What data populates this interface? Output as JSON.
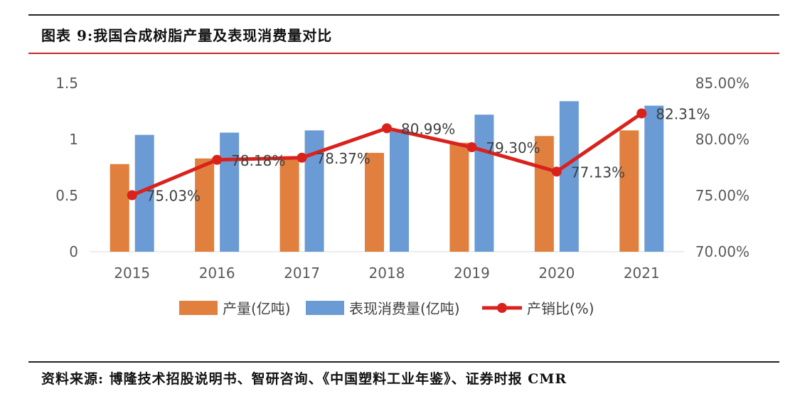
{
  "figure": {
    "title": "图表 9:我国合成树脂产量及表现消费量对比",
    "source": "资料来源: 博隆技术招股说明书、智研咨询、《中国塑料工业年鉴》、证券时报 CMR"
  },
  "chart_data": {
    "type": "bar+line",
    "title": "我国合成树脂产量及表现消费量对比",
    "categories": [
      "2015",
      "2016",
      "2017",
      "2018",
      "2019",
      "2020",
      "2021"
    ],
    "y_left": {
      "ylim": [
        0,
        1.5
      ],
      "ticks": [
        "0",
        "0.5",
        "1",
        "1.5"
      ],
      "tick_values": [
        0,
        0.5,
        1,
        1.5
      ]
    },
    "y_right": {
      "ylim": [
        70,
        85
      ],
      "ticks": [
        "70.00%",
        "75.00%",
        "80.00%",
        "85.00%"
      ],
      "tick_values": [
        70,
        75,
        80,
        85
      ]
    },
    "series": [
      {
        "name": "产量(亿吨)",
        "type": "bar",
        "axis": "left",
        "color": "#e07f3e",
        "values": [
          0.78,
          0.83,
          0.85,
          0.88,
          0.97,
          1.03,
          1.08
        ]
      },
      {
        "name": "表现消费量(亿吨)",
        "type": "bar",
        "axis": "left",
        "color": "#6a9bd4",
        "values": [
          1.04,
          1.06,
          1.08,
          1.09,
          1.22,
          1.34,
          1.3
        ]
      },
      {
        "name": "产销比(%)",
        "type": "line",
        "axis": "right",
        "color": "#d9221c",
        "values": [
          75.03,
          78.18,
          78.37,
          80.99,
          79.3,
          77.13,
          82.31
        ],
        "labels": [
          "75.03%",
          "78.18%",
          "78.37%",
          "80.99%",
          "79.30%",
          "77.13%",
          "82.31%"
        ]
      }
    ],
    "legend": [
      "产量(亿吨)",
      "表现消费量(亿吨)",
      "产销比(%)"
    ],
    "legend_position": "bottom",
    "grid": false
  }
}
